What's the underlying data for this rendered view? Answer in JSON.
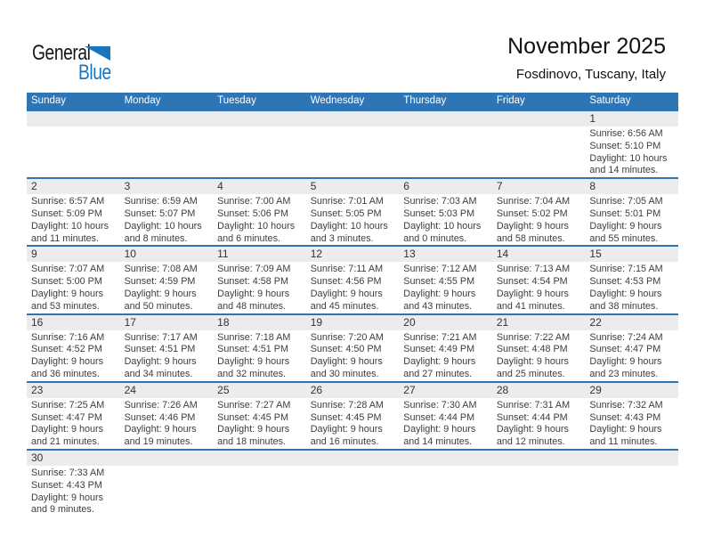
{
  "logo": {
    "part1": "General",
    "part2": "Blue"
  },
  "header": {
    "title": "November 2025",
    "subtitle": "Fosdinovo, Tuscany, Italy"
  },
  "weekdays": [
    "Sunday",
    "Monday",
    "Tuesday",
    "Wednesday",
    "Thursday",
    "Friday",
    "Saturday"
  ],
  "labels": {
    "sunrise": "Sunrise: ",
    "sunset": "Sunset: ",
    "daylight": "Daylight: "
  },
  "colors": {
    "header_bg": "#2E75B6",
    "row_border": "#2E75B6",
    "day_band_bg": "#ECECEC",
    "logo_blue": "#1B75BC",
    "weekday_text": "#FFFFFF"
  },
  "weeks": [
    [
      null,
      null,
      null,
      null,
      null,
      null,
      {
        "day": 1,
        "sunrise": "6:56 AM",
        "sunset": "5:10 PM",
        "daylight": "10 hours and 14 minutes."
      }
    ],
    [
      {
        "day": 2,
        "sunrise": "6:57 AM",
        "sunset": "5:09 PM",
        "daylight": "10 hours and 11 minutes."
      },
      {
        "day": 3,
        "sunrise": "6:59 AM",
        "sunset": "5:07 PM",
        "daylight": "10 hours and 8 minutes."
      },
      {
        "day": 4,
        "sunrise": "7:00 AM",
        "sunset": "5:06 PM",
        "daylight": "10 hours and 6 minutes."
      },
      {
        "day": 5,
        "sunrise": "7:01 AM",
        "sunset": "5:05 PM",
        "daylight": "10 hours and 3 minutes."
      },
      {
        "day": 6,
        "sunrise": "7:03 AM",
        "sunset": "5:03 PM",
        "daylight": "10 hours and 0 minutes."
      },
      {
        "day": 7,
        "sunrise": "7:04 AM",
        "sunset": "5:02 PM",
        "daylight": "9 hours and 58 minutes."
      },
      {
        "day": 8,
        "sunrise": "7:05 AM",
        "sunset": "5:01 PM",
        "daylight": "9 hours and 55 minutes."
      }
    ],
    [
      {
        "day": 9,
        "sunrise": "7:07 AM",
        "sunset": "5:00 PM",
        "daylight": "9 hours and 53 minutes."
      },
      {
        "day": 10,
        "sunrise": "7:08 AM",
        "sunset": "4:59 PM",
        "daylight": "9 hours and 50 minutes."
      },
      {
        "day": 11,
        "sunrise": "7:09 AM",
        "sunset": "4:58 PM",
        "daylight": "9 hours and 48 minutes."
      },
      {
        "day": 12,
        "sunrise": "7:11 AM",
        "sunset": "4:56 PM",
        "daylight": "9 hours and 45 minutes."
      },
      {
        "day": 13,
        "sunrise": "7:12 AM",
        "sunset": "4:55 PM",
        "daylight": "9 hours and 43 minutes."
      },
      {
        "day": 14,
        "sunrise": "7:13 AM",
        "sunset": "4:54 PM",
        "daylight": "9 hours and 41 minutes."
      },
      {
        "day": 15,
        "sunrise": "7:15 AM",
        "sunset": "4:53 PM",
        "daylight": "9 hours and 38 minutes."
      }
    ],
    [
      {
        "day": 16,
        "sunrise": "7:16 AM",
        "sunset": "4:52 PM",
        "daylight": "9 hours and 36 minutes."
      },
      {
        "day": 17,
        "sunrise": "7:17 AM",
        "sunset": "4:51 PM",
        "daylight": "9 hours and 34 minutes."
      },
      {
        "day": 18,
        "sunrise": "7:18 AM",
        "sunset": "4:51 PM",
        "daylight": "9 hours and 32 minutes."
      },
      {
        "day": 19,
        "sunrise": "7:20 AM",
        "sunset": "4:50 PM",
        "daylight": "9 hours and 30 minutes."
      },
      {
        "day": 20,
        "sunrise": "7:21 AM",
        "sunset": "4:49 PM",
        "daylight": "9 hours and 27 minutes."
      },
      {
        "day": 21,
        "sunrise": "7:22 AM",
        "sunset": "4:48 PM",
        "daylight": "9 hours and 25 minutes."
      },
      {
        "day": 22,
        "sunrise": "7:24 AM",
        "sunset": "4:47 PM",
        "daylight": "9 hours and 23 minutes."
      }
    ],
    [
      {
        "day": 23,
        "sunrise": "7:25 AM",
        "sunset": "4:47 PM",
        "daylight": "9 hours and 21 minutes."
      },
      {
        "day": 24,
        "sunrise": "7:26 AM",
        "sunset": "4:46 PM",
        "daylight": "9 hours and 19 minutes."
      },
      {
        "day": 25,
        "sunrise": "7:27 AM",
        "sunset": "4:45 PM",
        "daylight": "9 hours and 18 minutes."
      },
      {
        "day": 26,
        "sunrise": "7:28 AM",
        "sunset": "4:45 PM",
        "daylight": "9 hours and 16 minutes."
      },
      {
        "day": 27,
        "sunrise": "7:30 AM",
        "sunset": "4:44 PM",
        "daylight": "9 hours and 14 minutes."
      },
      {
        "day": 28,
        "sunrise": "7:31 AM",
        "sunset": "4:44 PM",
        "daylight": "9 hours and 12 minutes."
      },
      {
        "day": 29,
        "sunrise": "7:32 AM",
        "sunset": "4:43 PM",
        "daylight": "9 hours and 11 minutes."
      }
    ],
    [
      {
        "day": 30,
        "sunrise": "7:33 AM",
        "sunset": "4:43 PM",
        "daylight": "9 hours and 9 minutes."
      },
      null,
      null,
      null,
      null,
      null,
      null
    ]
  ]
}
